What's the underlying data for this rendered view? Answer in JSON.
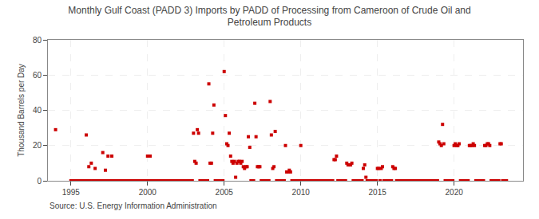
{
  "chart_data": {
    "type": "scatter",
    "title": "Monthly Gulf Coast (PADD 3) Imports by PADD of Processing from Cameroon of Crude Oil and\nPetroleum Products",
    "ylabel": "Thousand Barrels per Day",
    "annotations": [
      "Source: U.S. Energy Information Administration"
    ],
    "color": "#cc0000",
    "marker": "square",
    "grid": true,
    "xlim": [
      1993.5,
      2024.5
    ],
    "xticks": [
      1995,
      2000,
      2005,
      2010,
      2015,
      2020
    ],
    "ylim": [
      0,
      80
    ],
    "yticks": [
      0,
      20,
      40,
      60,
      80
    ],
    "x": [
      1994.0,
      1995.0,
      1995.08,
      1995.17,
      1995.25,
      1995.33,
      1995.42,
      1995.5,
      1995.58,
      1995.67,
      1995.75,
      1995.83,
      1995.92,
      1996.0,
      1996.08,
      1996.17,
      1996.25,
      1996.33,
      1996.42,
      1996.5,
      1996.58,
      1996.67,
      1996.75,
      1996.83,
      1996.92,
      1997.0,
      1997.08,
      1997.17,
      1997.25,
      1997.33,
      1997.42,
      1997.5,
      1997.58,
      1997.67,
      1997.75,
      1997.83,
      1997.92,
      1998.0,
      1998.08,
      1998.17,
      1998.25,
      1998.33,
      1998.42,
      1998.5,
      1998.58,
      1998.67,
      1998.75,
      1998.83,
      1998.92,
      1999.0,
      1999.08,
      1999.17,
      1999.25,
      1999.33,
      1999.42,
      1999.5,
      1999.58,
      1999.67,
      1999.75,
      1999.83,
      1999.92,
      2000.0,
      2000.08,
      2000.17,
      2000.25,
      2000.33,
      2000.42,
      2000.5,
      2000.58,
      2000.67,
      2000.75,
      2000.83,
      2000.92,
      2001.0,
      2001.08,
      2001.17,
      2001.25,
      2001.33,
      2001.42,
      2001.5,
      2001.58,
      2001.67,
      2001.75,
      2001.83,
      2001.92,
      2002.0,
      2002.08,
      2002.17,
      2002.25,
      2002.33,
      2002.42,
      2002.5,
      2002.58,
      2002.67,
      2002.75,
      2002.83,
      2002.92,
      2003.0,
      2003.08,
      2003.17,
      2003.25,
      2003.33,
      2003.42,
      2003.5,
      2003.58,
      2003.67,
      2003.75,
      2003.83,
      2003.92,
      2004.0,
      2004.08,
      2004.17,
      2004.25,
      2004.33,
      2004.42,
      2004.5,
      2004.58,
      2004.67,
      2004.75,
      2004.83,
      2004.92,
      2005.0,
      2005.08,
      2005.17,
      2005.25,
      2005.33,
      2005.42,
      2005.5,
      2005.58,
      2005.67,
      2005.75,
      2005.83,
      2005.92,
      2006.0,
      2006.08,
      2006.17,
      2006.25,
      2006.33,
      2006.42,
      2006.5,
      2006.58,
      2006.67,
      2006.75,
      2006.83,
      2006.92,
      2007.0,
      2007.08,
      2007.17,
      2007.25,
      2007.33,
      2007.42,
      2007.5,
      2007.58,
      2007.67,
      2007.75,
      2007.83,
      2007.92,
      2008.0,
      2008.08,
      2008.17,
      2008.25,
      2008.33,
      2008.42,
      2008.5,
      2008.58,
      2008.67,
      2008.75,
      2008.83,
      2008.92,
      2009.0,
      2009.08,
      2009.17,
      2009.25,
      2009.33,
      2009.42,
      2009.5,
      2009.58,
      2009.67,
      2009.75,
      2009.83,
      2009.92,
      2010.0,
      2010.08,
      2010.17,
      2010.25,
      2010.33,
      2010.42,
      2010.5,
      2010.58,
      2010.67,
      2010.75,
      2010.83,
      2010.92,
      2011.0,
      2011.08,
      2011.17,
      2011.25,
      2011.33,
      2011.42,
      2011.5,
      2011.58,
      2011.67,
      2011.75,
      2011.83,
      2011.92,
      2012.0,
      2012.08,
      2012.17,
      2012.25,
      2012.33,
      2012.42,
      2012.5,
      2012.58,
      2012.67,
      2012.75,
      2012.83,
      2012.92,
      2013.0,
      2013.08,
      2013.17,
      2013.25,
      2013.33,
      2013.42,
      2013.5,
      2013.58,
      2013.67,
      2013.75,
      2013.83,
      2013.92,
      2014.0,
      2014.08,
      2014.17,
      2014.25,
      2014.33,
      2014.42,
      2014.5,
      2014.58,
      2014.67,
      2014.75,
      2014.83,
      2014.92,
      2015.0,
      2015.08,
      2015.17,
      2015.25,
      2015.33,
      2015.42,
      2015.5,
      2015.58,
      2015.67,
      2015.75,
      2015.83,
      2015.92,
      2016.0,
      2016.08,
      2016.17,
      2016.25,
      2016.33,
      2016.42,
      2016.5,
      2016.58,
      2016.67,
      2016.75,
      2016.83,
      2016.92,
      2017.0,
      2017.08,
      2017.17,
      2017.25,
      2017.33,
      2017.42,
      2017.5,
      2017.58,
      2017.67,
      2017.75,
      2017.83,
      2017.92,
      2018.0,
      2018.08,
      2018.17,
      2018.25,
      2018.33,
      2018.42,
      2018.5,
      2018.58,
      2018.67,
      2018.75,
      2018.83,
      2018.92,
      2019.0,
      2019.08,
      2019.17,
      2019.25,
      2019.33,
      2019.42,
      2019.5,
      2019.58,
      2019.67,
      2019.75,
      2019.83,
      2019.92,
      2020.0,
      2020.08,
      2020.17,
      2020.25,
      2020.33,
      2020.42,
      2020.5,
      2020.58,
      2020.67,
      2020.75,
      2020.83,
      2020.92,
      2021.0,
      2021.08,
      2021.17,
      2021.25,
      2021.33,
      2021.42,
      2021.5,
      2021.58,
      2021.67,
      2021.75,
      2021.83,
      2021.92,
      2022.0,
      2022.08,
      2022.17,
      2022.25,
      2022.33,
      2022.42,
      2022.5,
      2022.58,
      2022.67,
      2022.75,
      2022.83,
      2022.92,
      2023.0,
      2023.08,
      2023.17,
      2023.25,
      2023.33,
      2023.42
    ],
    "values": [
      29,
      0,
      0,
      0,
      0,
      0,
      0,
      0,
      0,
      0,
      0,
      0,
      0,
      26,
      0,
      8,
      0,
      10,
      0,
      0,
      7,
      0,
      0,
      0,
      0,
      0,
      16,
      0,
      6,
      0,
      14,
      0,
      0,
      14,
      0,
      0,
      0,
      0,
      0,
      0,
      0,
      0,
      0,
      0,
      0,
      0,
      0,
      0,
      0,
      0,
      0,
      0,
      0,
      0,
      0,
      0,
      0,
      0,
      0,
      0,
      0,
      14,
      0,
      14,
      0,
      0,
      0,
      0,
      0,
      0,
      0,
      0,
      0,
      0,
      0,
      0,
      0,
      0,
      0,
      0,
      0,
      0,
      0,
      0,
      0,
      0,
      0,
      0,
      0,
      0,
      0,
      0,
      0,
      0,
      0,
      0,
      0,
      27,
      11,
      10,
      29,
      27,
      0,
      0,
      0,
      0,
      0,
      0,
      0,
      55,
      10,
      10,
      27,
      43,
      0,
      0,
      0,
      0,
      0,
      0,
      0,
      62,
      37,
      21,
      20,
      27,
      14,
      11,
      10,
      11,
      2,
      10,
      11,
      11,
      10,
      11,
      8,
      7,
      8,
      8,
      25,
      19,
      0,
      0,
      0,
      44,
      25,
      8,
      8,
      8,
      0,
      0,
      0,
      0,
      0,
      0,
      0,
      45,
      26,
      7,
      8,
      28,
      0,
      0,
      0,
      0,
      0,
      0,
      0,
      20,
      5,
      5,
      6,
      5,
      0,
      0,
      0,
      0,
      0,
      0,
      0,
      20,
      0,
      0,
      0,
      0,
      0,
      0,
      0,
      0,
      0,
      0,
      0,
      0,
      0,
      0,
      0,
      0,
      0,
      0,
      0,
      0,
      0,
      0,
      0,
      0,
      0,
      12,
      12,
      14,
      0,
      0,
      0,
      0,
      0,
      0,
      0,
      10,
      9,
      9,
      9,
      10,
      0,
      0,
      0,
      0,
      0,
      0,
      0,
      0,
      7,
      9,
      2,
      0,
      0,
      0,
      0,
      0,
      0,
      0,
      0,
      7,
      7,
      0,
      7,
      8,
      0,
      0,
      0,
      0,
      0,
      0,
      0,
      8,
      7,
      7,
      0,
      0,
      0,
      0,
      0,
      0,
      0,
      0,
      0,
      0,
      0,
      0,
      0,
      0,
      0,
      0,
      0,
      0,
      0,
      0,
      0,
      0,
      0,
      0,
      0,
      0,
      0,
      0,
      0,
      0,
      0,
      0,
      0,
      22,
      21,
      20,
      32,
      21,
      0,
      0,
      0,
      0,
      0,
      0,
      0,
      20,
      21,
      20,
      20,
      21,
      0,
      0,
      0,
      0,
      0,
      0,
      0,
      20,
      20,
      20,
      21,
      20,
      0,
      0,
      0,
      0,
      0,
      0,
      0,
      20,
      20,
      21,
      21,
      20,
      0,
      0,
      0,
      0,
      0,
      0,
      0,
      21,
      21,
      0,
      0,
      0,
      0
    ]
  }
}
